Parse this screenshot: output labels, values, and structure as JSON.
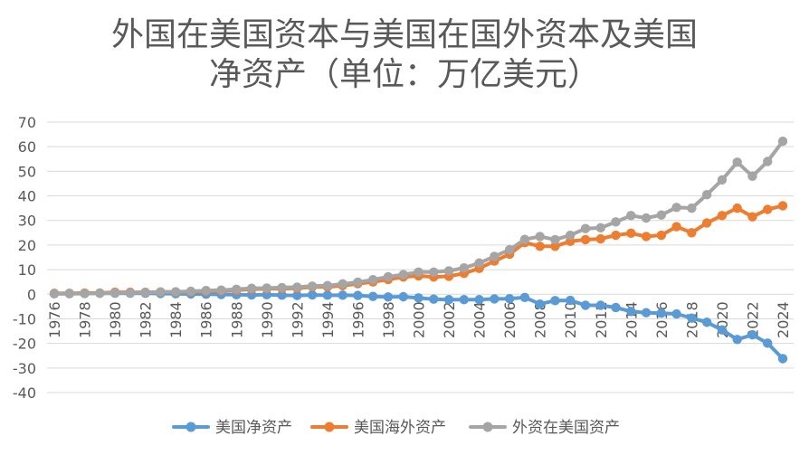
{
  "chart_data": {
    "type": "line",
    "title": "外国在美国资本与美国在国外资本及美国净资产（单位：万亿美元）",
    "title_lines": [
      "外国在美国资本与美国在国外资本及美国",
      "净资产（单位：万亿美元）"
    ],
    "xlabel": "",
    "ylabel": "",
    "ylim": [
      -40,
      70
    ],
    "yticks": [
      70,
      60,
      50,
      40,
      30,
      20,
      10,
      0,
      -10,
      -20,
      -30,
      -40
    ],
    "x": [
      1976,
      1977,
      1978,
      1979,
      1980,
      1981,
      1982,
      1983,
      1984,
      1985,
      1986,
      1987,
      1988,
      1989,
      1990,
      1991,
      1992,
      1993,
      1994,
      1995,
      1996,
      1997,
      1998,
      1999,
      2000,
      2001,
      2002,
      2003,
      2004,
      2005,
      2006,
      2007,
      2008,
      2009,
      2010,
      2011,
      2012,
      2013,
      2014,
      2015,
      2016,
      2017,
      2018,
      2019,
      2020,
      2021,
      2022,
      2023,
      2024
    ],
    "xtick_labels": [
      "1976",
      "1978",
      "1980",
      "1982",
      "1984",
      "1986",
      "1988",
      "1990",
      "1992",
      "1994",
      "1996",
      "1998",
      "2000",
      "2002",
      "2004",
      "2006",
      "2008",
      "2010",
      "2012",
      "2014",
      "2016",
      "2018",
      "2020",
      "2022",
      "2024"
    ],
    "grid": true,
    "legend_position": "bottom",
    "series": [
      {
        "name": "美国净资产",
        "color": "#5B9BD5",
        "values": [
          0.2,
          0.2,
          0.3,
          0.4,
          0.4,
          0.4,
          0.4,
          0.3,
          0.2,
          0.1,
          0.0,
          -0.1,
          -0.2,
          -0.3,
          -0.2,
          -0.4,
          -0.5,
          -0.3,
          -0.4,
          -0.4,
          -0.5,
          -0.9,
          -1.1,
          -1.0,
          -1.5,
          -2.0,
          -2.2,
          -2.2,
          -2.2,
          -1.9,
          -1.8,
          -1.3,
          -4.0,
          -2.6,
          -2.5,
          -4.5,
          -4.5,
          -5.4,
          -7.0,
          -7.5,
          -7.7,
          -8.0,
          -9.7,
          -11.4,
          -14.5,
          -18.4,
          -16.5,
          -19.9,
          -26.2
        ]
      },
      {
        "name": "美国海外资产",
        "color": "#ED7D31",
        "values": [
          0.4,
          0.4,
          0.5,
          0.5,
          0.8,
          0.8,
          0.8,
          0.9,
          0.9,
          1.0,
          1.2,
          1.4,
          1.6,
          2.0,
          2.2,
          2.3,
          2.4,
          3.0,
          3.0,
          3.5,
          4.3,
          5.0,
          6.0,
          7.0,
          7.5,
          7.0,
          7.3,
          8.5,
          10.5,
          13.5,
          16.3,
          21.0,
          19.5,
          19.5,
          21.5,
          22.2,
          22.5,
          24.0,
          24.8,
          23.5,
          24.0,
          27.5,
          25.0,
          29.0,
          32.0,
          35.0,
          31.5,
          34.5,
          36.0
        ]
      },
      {
        "name": "外资在美国资产",
        "color": "#A5A5A5",
        "values": [
          0.2,
          0.3,
          0.3,
          0.4,
          0.5,
          0.6,
          0.7,
          0.9,
          1.0,
          1.2,
          1.5,
          1.7,
          2.0,
          2.4,
          2.5,
          2.7,
          2.9,
          3.3,
          3.5,
          4.2,
          4.9,
          5.9,
          7.1,
          8.0,
          9.0,
          9.0,
          9.5,
          10.7,
          12.7,
          15.4,
          18.1,
          22.3,
          23.5,
          22.2,
          24.0,
          26.7,
          27.0,
          29.4,
          32.0,
          31.0,
          32.2,
          35.3,
          35.0,
          40.5,
          46.5,
          53.7,
          48.0,
          54.0,
          62.2
        ]
      }
    ]
  }
}
